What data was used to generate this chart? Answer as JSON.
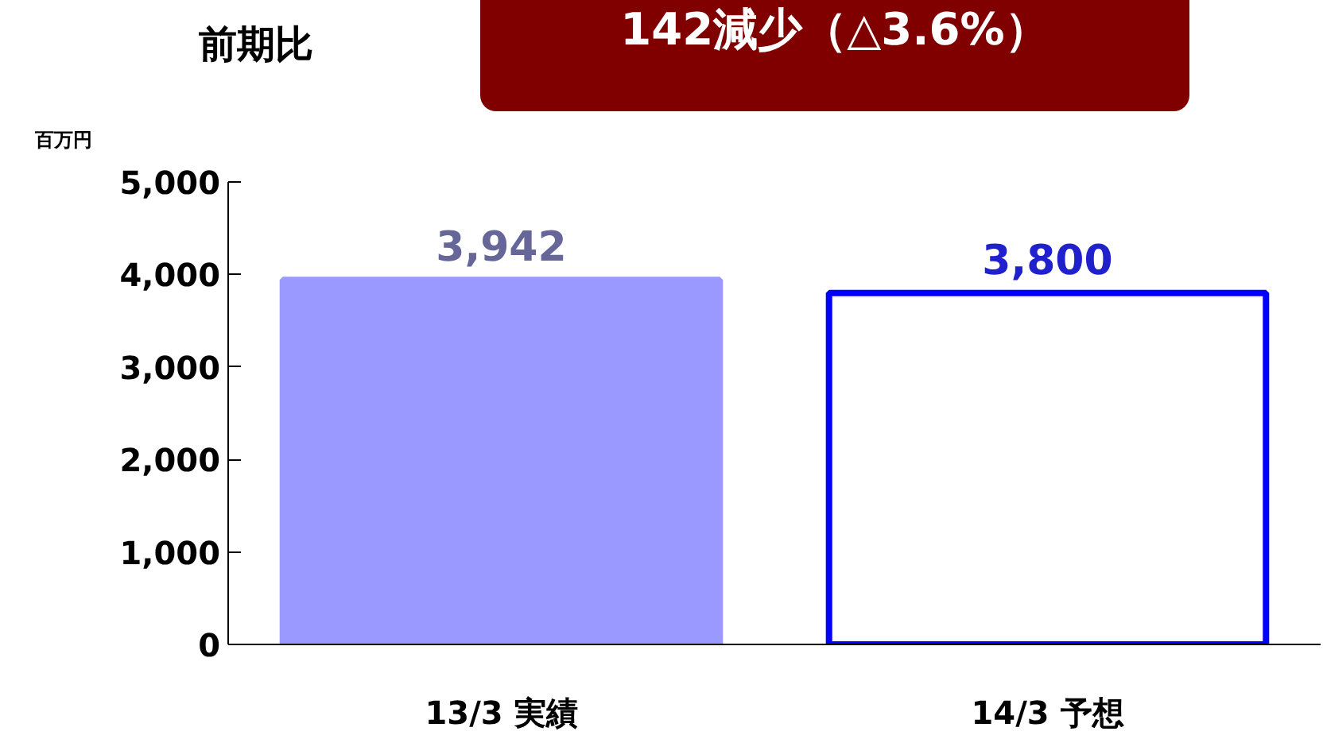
{
  "chart_data": {
    "type": "bar",
    "title": "前期比",
    "ylabel": "百万円",
    "annotations": [
      "142減少（△3.6%）"
    ],
    "categories": [
      "13/3 実績",
      "14/3 予想"
    ],
    "values": [
      3942,
      3800
    ],
    "value_labels": [
      "3,942",
      "3,800"
    ],
    "colors": [
      "#9999ff",
      "#ffffff"
    ],
    "ylim": [
      0,
      5000
    ],
    "yticks": [
      {
        "value": 0,
        "label": "0"
      },
      {
        "value": 1000,
        "label": "1,000"
      },
      {
        "value": 2000,
        "label": "2,000"
      },
      {
        "value": 3000,
        "label": "3,000"
      },
      {
        "value": 4000,
        "label": "4,000"
      },
      {
        "value": 5000,
        "label": "5,000"
      }
    ],
    "grid": false
  }
}
